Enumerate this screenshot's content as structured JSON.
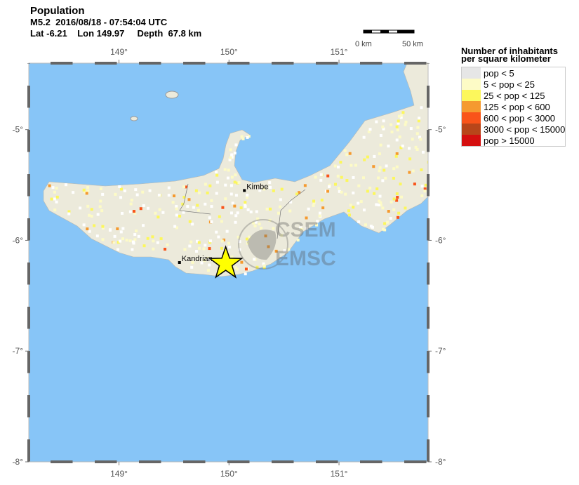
{
  "header": {
    "title": "Population",
    "event": "M5.2  2016/08/18 - 07:54:04 UTC",
    "location": "Lat -6.21    Lon 149.97     Depth  67.8 km"
  },
  "event": {
    "magnitude": 5.2,
    "lat": -6.21,
    "lon": 149.97,
    "depth_km": 67.8,
    "marker_color": "#ffff00"
  },
  "map": {
    "extent": {
      "lon": [
        148.18,
        151.81
      ],
      "lat": [
        -8.0,
        -4.4
      ]
    },
    "lon_ticks": [
      "149°",
      "150°",
      "151°"
    ],
    "lat_ticks": [
      "-5°",
      "-6°",
      "-7°",
      "-8°"
    ],
    "sea_color": "#87c5f7",
    "land_color": "#eceadb",
    "cities": [
      {
        "name": "Kimbe",
        "lat": -5.55,
        "lon": 150.14
      },
      {
        "name": "Kandrian",
        "lat": -6.2,
        "lon": 149.55
      }
    ],
    "watermark": [
      "CSEM",
      "EMSC"
    ]
  },
  "scale": {
    "left": "0 km",
    "right": "50 km"
  },
  "legend": {
    "title1": "Number of inhabitants",
    "title2": "per square kilometer",
    "items": [
      {
        "label": "pop < 5",
        "color": "#e6e6e6"
      },
      {
        "label": "5 < pop < 25",
        "color": "#fdfbc6"
      },
      {
        "label": "25 < pop < 125",
        "color": "#fcf75c"
      },
      {
        "label": "125 < pop < 600",
        "color": "#f59a2f"
      },
      {
        "label": "600 < pop < 3000",
        "color": "#f9541a"
      },
      {
        "label": "3000 < pop < 15000",
        "color": "#b8461a"
      },
      {
        "label": "pop > 15000",
        "color": "#d50f0f"
      }
    ]
  }
}
